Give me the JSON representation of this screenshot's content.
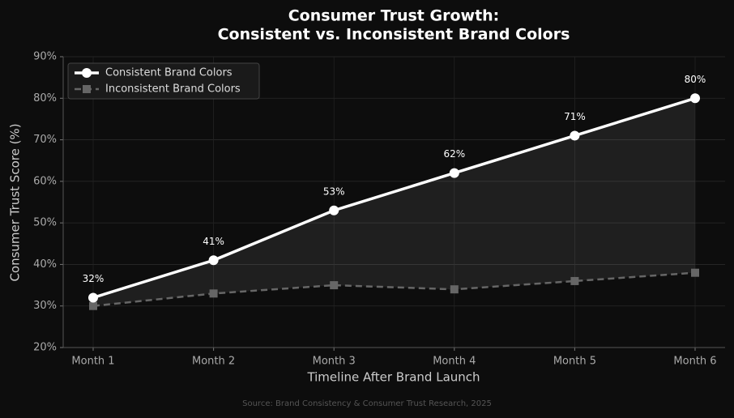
{
  "chart_data": {
    "type": "line",
    "title": [
      "Consumer Trust Growth:",
      "Consistent vs. Inconsistent Brand Colors"
    ],
    "xlabel": "Timeline After Brand Launch",
    "ylabel": "Consumer Trust Score (%)",
    "source": "Source: Brand Consistency & Consumer Trust Research, 2025",
    "categories": [
      "Month 1",
      "Month 2",
      "Month 3",
      "Month 4",
      "Month 5",
      "Month 6"
    ],
    "series": [
      {
        "name": "Consistent Brand Colors",
        "color": "#ffffff",
        "marker": "circle",
        "dash": false,
        "values": [
          32,
          41,
          53,
          62,
          71,
          80
        ],
        "value_labels": [
          "32%",
          "41%",
          "53%",
          "62%",
          "71%",
          "80%"
        ]
      },
      {
        "name": "Inconsistent Brand Colors",
        "color": "#666666",
        "marker": "square",
        "dash": true,
        "values": [
          30,
          33,
          35,
          34,
          36,
          38
        ]
      }
    ],
    "ylim": [
      20,
      90
    ],
    "yticks": [
      {
        "value": 20,
        "label": "20%"
      },
      {
        "value": 30,
        "label": "30%"
      },
      {
        "value": 40,
        "label": "40%"
      },
      {
        "value": 50,
        "label": "50%"
      },
      {
        "value": 60,
        "label": "60%"
      },
      {
        "value": 70,
        "label": "70%"
      },
      {
        "value": 80,
        "label": "80%"
      },
      {
        "value": 90,
        "label": "90%"
      }
    ],
    "grid": true,
    "legend": "upper-left",
    "fill_between": true
  }
}
